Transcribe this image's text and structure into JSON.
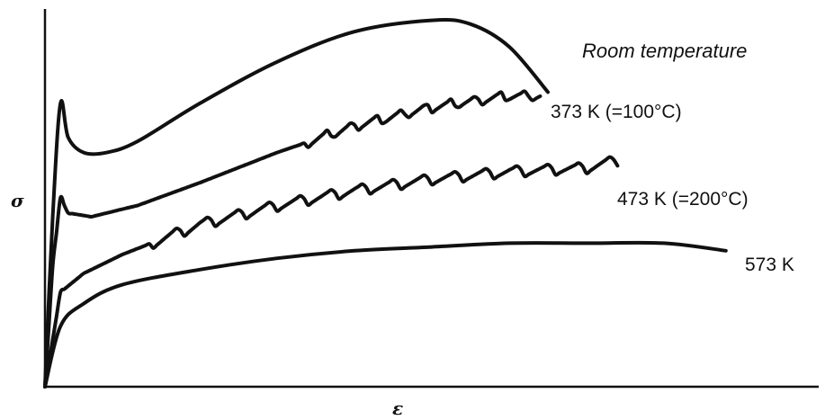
{
  "chart_data": {
    "type": "line",
    "title": "",
    "xlabel": "ε",
    "ylabel": "σ",
    "xlim": [
      0,
      1
    ],
    "ylim": [
      0,
      1
    ],
    "grid": false,
    "legend": "none (direct labels at curve ends)",
    "series": [
      {
        "name": "Room temperature",
        "x": [
          0,
          0.01,
          0.02,
          0.03,
          0.05,
          0.08,
          0.12,
          0.2,
          0.3,
          0.4,
          0.5,
          0.55,
          0.6,
          0.65
        ],
        "y": [
          0,
          0.45,
          0.75,
          0.66,
          0.62,
          0.62,
          0.65,
          0.75,
          0.86,
          0.94,
          0.97,
          0.96,
          0.9,
          0.78
        ],
        "serrated": false
      },
      {
        "name": "373 K (=100°C)",
        "x": [
          0,
          0.01,
          0.02,
          0.03,
          0.06,
          0.12,
          0.2,
          0.3,
          0.4,
          0.5,
          0.6,
          0.64
        ],
        "y": [
          0,
          0.32,
          0.5,
          0.46,
          0.45,
          0.48,
          0.54,
          0.62,
          0.69,
          0.74,
          0.77,
          0.77
        ],
        "serrated": true
      },
      {
        "name": "473 K (=200°C)",
        "x": [
          0,
          0.02,
          0.05,
          0.1,
          0.2,
          0.3,
          0.4,
          0.5,
          0.6,
          0.7,
          0.74
        ],
        "y": [
          0,
          0.25,
          0.3,
          0.35,
          0.43,
          0.48,
          0.52,
          0.55,
          0.57,
          0.58,
          0.6
        ],
        "serrated": true
      },
      {
        "name": "573 K",
        "x": [
          0,
          0.02,
          0.05,
          0.1,
          0.2,
          0.3,
          0.4,
          0.5,
          0.6,
          0.7,
          0.8,
          0.88
        ],
        "y": [
          0,
          0.16,
          0.22,
          0.27,
          0.31,
          0.34,
          0.36,
          0.37,
          0.38,
          0.38,
          0.38,
          0.36
        ],
        "serrated": false
      }
    ]
  }
}
